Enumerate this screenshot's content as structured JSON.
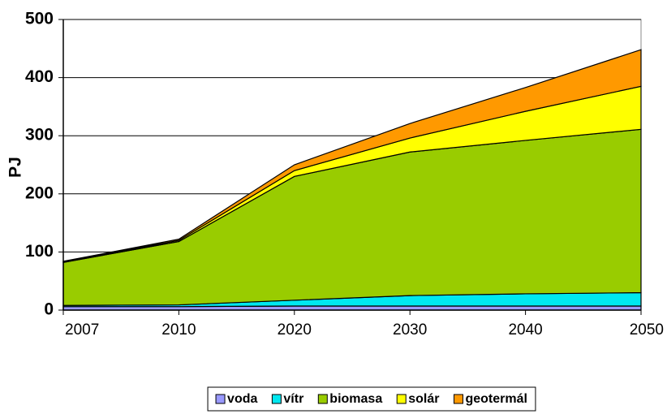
{
  "chart_data": {
    "type": "stacked_area",
    "y_label": "PJ",
    "categories": [
      "2007",
      "2010",
      "2020",
      "2030",
      "2040",
      "2050"
    ],
    "series": [
      {
        "name": "voda",
        "color": "#9999ff",
        "values": [
          6,
          6,
          7,
          7,
          7,
          7
        ]
      },
      {
        "name": "vítr",
        "color": "#00e8f0",
        "values": [
          2,
          3,
          10,
          18,
          21,
          23
        ]
      },
      {
        "name": "biomasa",
        "color": "#99cc00",
        "values": [
          74,
          109,
          213,
          247,
          264,
          281
        ]
      },
      {
        "name": "solár",
        "color": "#ffff00",
        "values": [
          1,
          2,
          10,
          24,
          50,
          74
        ]
      },
      {
        "name": "geotermál",
        "color": "#ff9900",
        "values": [
          1,
          2,
          10,
          25,
          41,
          63
        ]
      }
    ],
    "ylim": [
      0,
      500
    ],
    "yticks": [
      0,
      100,
      200,
      300,
      400,
      500
    ],
    "grid": true,
    "legend": "bottom"
  }
}
